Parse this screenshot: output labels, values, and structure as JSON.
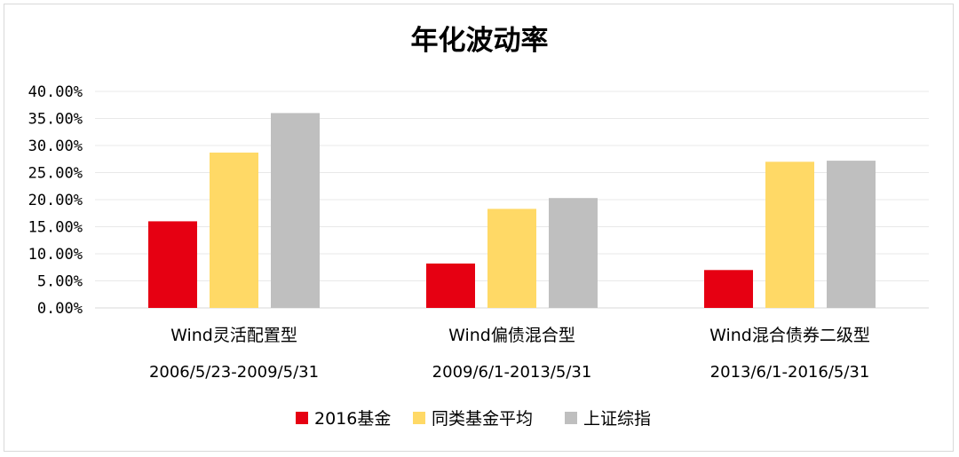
{
  "chart_data": {
    "type": "bar",
    "title": "年化波动率",
    "xlabel": "",
    "ylabel": "",
    "ylim": [
      0,
      0.4
    ],
    "yticks": [
      "0.00%",
      "5.00%",
      "10.00%",
      "15.00%",
      "20.00%",
      "25.00%",
      "30.00%",
      "35.00%",
      "40.00%"
    ],
    "grid": true,
    "legend_position": "bottom",
    "categories": [
      "Wind灵活配置型",
      "Wind偏债混合型",
      "Wind混合债券二级型"
    ],
    "periods": [
      "2006/5/23-2009/5/31",
      "2009/6/1-2013/5/31",
      "2013/6/1-2016/5/31"
    ],
    "series": [
      {
        "name": "2016基金",
        "color": "#e60012",
        "values": [
          0.16,
          0.082,
          0.07
        ]
      },
      {
        "name": "同类基金平均",
        "color": "#ffd966",
        "values": [
          0.287,
          0.183,
          0.27
        ]
      },
      {
        "name": "上证综指",
        "color": "#bfbfbf",
        "values": [
          0.36,
          0.203,
          0.272
        ]
      }
    ]
  }
}
